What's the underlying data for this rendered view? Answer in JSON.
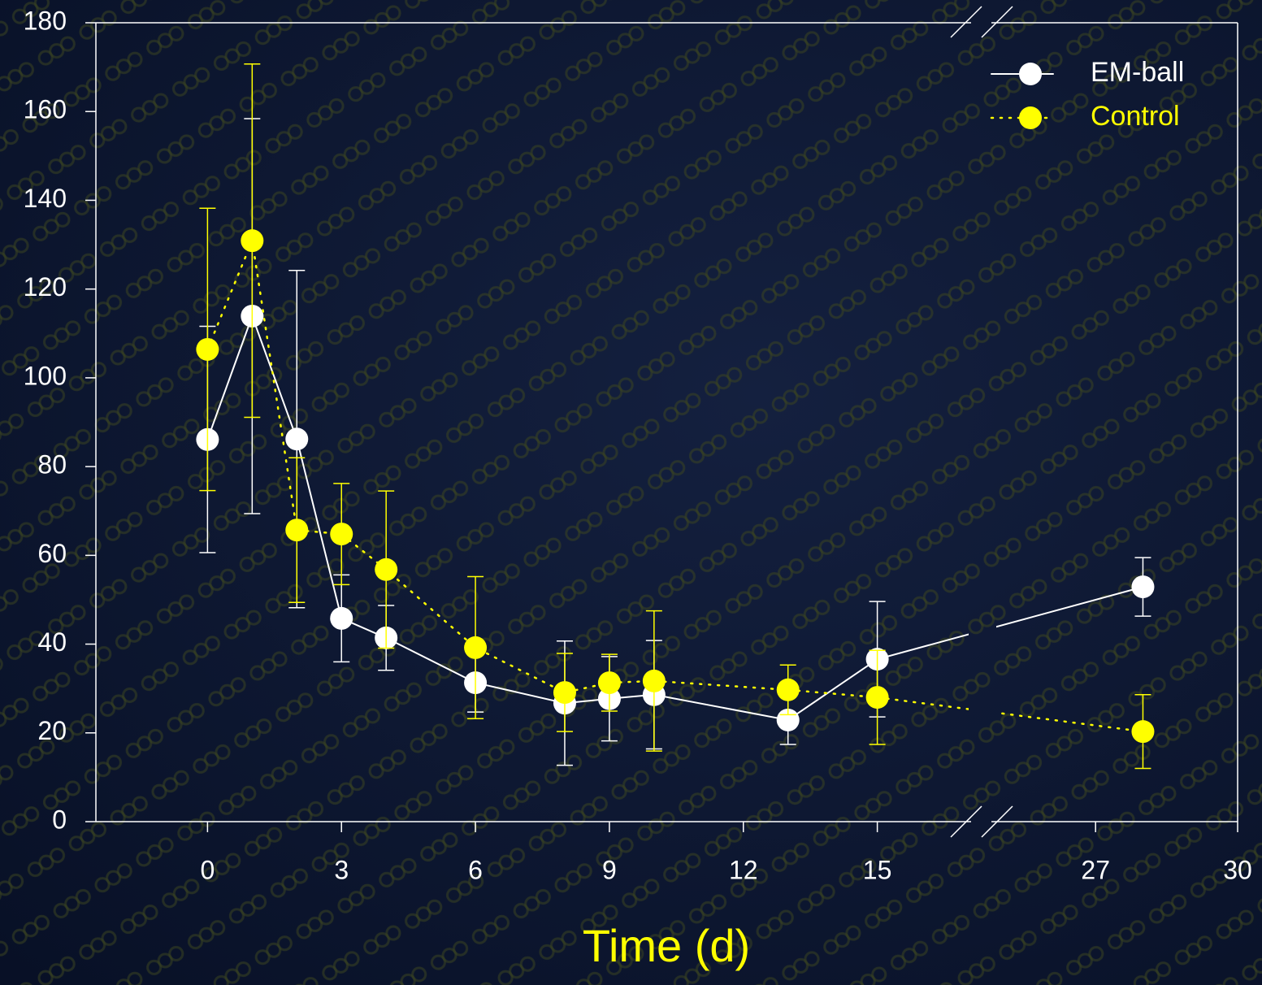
{
  "chart_data": {
    "type": "line",
    "xlabel": "Time (d)",
    "x": [
      0,
      1,
      2,
      3,
      4,
      6,
      8,
      9,
      10,
      13,
      15,
      28
    ],
    "x_segments": [
      {
        "xlim": [
          -2.5,
          17.1
        ],
        "xticks": [
          0,
          3,
          6,
          9,
          12,
          15
        ]
      },
      {
        "xlim": [
          24.8,
          30
        ],
        "xticks": [
          27,
          30
        ]
      }
    ],
    "ylim": [
      0,
      180
    ],
    "yticks": [
      0,
      20,
      40,
      60,
      80,
      100,
      120,
      140,
      160,
      180
    ],
    "legend": "upper right",
    "series": [
      {
        "name": "EM-ball",
        "color": "#ffffff",
        "linestyle": "solid",
        "values": [
          86.1,
          113.9,
          86.2,
          45.8,
          41.4,
          31.3,
          26.7,
          27.7,
          28.6,
          22.9,
          36.6,
          52.9
        ],
        "errors": [
          25.5,
          44.5,
          38,
          9.8,
          7.3,
          6.6,
          14,
          9.5,
          12.2,
          5.5,
          13,
          6.6
        ]
      },
      {
        "name": "Control",
        "color": "#ffff00",
        "linestyle": "dotted",
        "values": [
          106.4,
          130.9,
          65.7,
          64.8,
          56.8,
          39.2,
          29.1,
          31.3,
          31.7,
          29.7,
          28.0,
          20.3
        ],
        "errors": [
          31.8,
          39.8,
          16.3,
          11.4,
          17.7,
          16,
          8.8,
          6.4,
          15.8,
          5.6,
          10.6,
          8.3
        ]
      }
    ]
  }
}
